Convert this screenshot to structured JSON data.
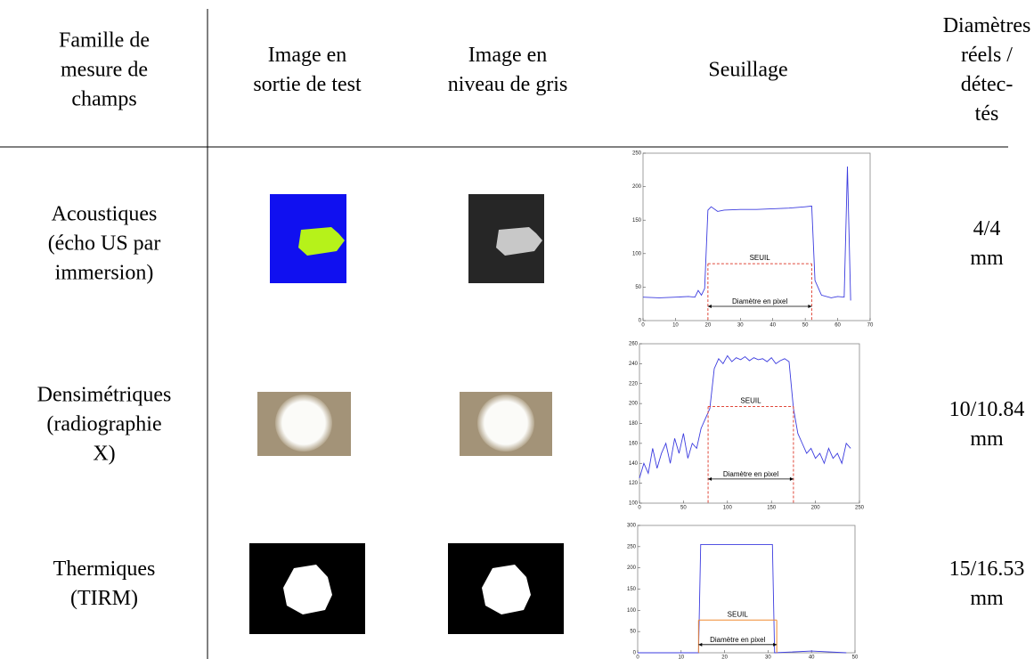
{
  "table": {
    "header": [
      [
        "Famille de",
        "mesure de",
        "champs"
      ],
      [
        "Image en",
        "sortie de test"
      ],
      [
        "Image en",
        "niveau de gris"
      ],
      [
        "Seuillage"
      ],
      [
        "Diamètres",
        "réels /",
        "détec-",
        "tés"
      ]
    ],
    "rows": [
      {
        "family": [
          "Acoustiques",
          "(écho US par",
          "immersion)"
        ],
        "result": [
          "4/4",
          "mm"
        ]
      },
      {
        "family": [
          "Densimétriques",
          "(radiographie",
          "X)"
        ],
        "result": [
          "10/10.84",
          "mm"
        ]
      },
      {
        "family": [
          "Thermiques",
          "(TIRM)"
        ],
        "result": [
          "15/16.53",
          "mm"
        ]
      }
    ]
  },
  "plots": [
    {
      "xlim": [
        0,
        70
      ],
      "ylim": [
        0,
        250
      ],
      "xticks": [
        0,
        10,
        20,
        30,
        40,
        50,
        60,
        70
      ],
      "yticks": [
        0,
        50,
        100,
        150,
        200,
        250
      ],
      "x": [
        0,
        5,
        10,
        14,
        16,
        17,
        18,
        19,
        20,
        21,
        23,
        25,
        30,
        35,
        40,
        45,
        50,
        52,
        53,
        55,
        58,
        60,
        62,
        63,
        64
      ],
      "y": [
        35,
        34,
        35,
        36,
        35,
        45,
        38,
        48,
        165,
        170,
        163,
        165,
        166,
        166,
        167,
        168,
        170,
        171,
        60,
        38,
        34,
        36,
        35,
        230,
        30
      ],
      "threshold": 85,
      "edges": [
        20,
        52
      ],
      "threshold_label": "SEUIL",
      "diameter_label": "Diamètre en pixel"
    },
    {
      "xlim": [
        0,
        250
      ],
      "ylim": [
        100,
        260
      ],
      "xticks": [
        0,
        50,
        100,
        150,
        200,
        250
      ],
      "yticks": [
        100,
        120,
        140,
        160,
        180,
        200,
        220,
        240,
        260
      ],
      "x": [
        0,
        5,
        10,
        15,
        20,
        25,
        30,
        35,
        40,
        45,
        50,
        55,
        60,
        65,
        70,
        75,
        80,
        85,
        90,
        95,
        100,
        105,
        110,
        115,
        120,
        125,
        130,
        135,
        140,
        145,
        150,
        155,
        160,
        165,
        170,
        175,
        180,
        185,
        190,
        195,
        200,
        205,
        210,
        215,
        220,
        225,
        230,
        235,
        240
      ],
      "y": [
        125,
        140,
        130,
        155,
        135,
        150,
        160,
        140,
        165,
        150,
        170,
        145,
        160,
        155,
        175,
        185,
        195,
        235,
        245,
        240,
        248,
        242,
        246,
        244,
        247,
        243,
        246,
        244,
        245,
        242,
        246,
        240,
        243,
        245,
        242,
        195,
        170,
        160,
        150,
        155,
        145,
        150,
        140,
        155,
        145,
        150,
        140,
        160,
        155
      ],
      "threshold": 197,
      "edges": [
        78,
        175
      ],
      "threshold_label": "SEUIL",
      "diameter_label": "Diamètre en pixel"
    },
    {
      "xlim": [
        0,
        50
      ],
      "ylim": [
        0,
        300
      ],
      "xticks": [
        0,
        10,
        20,
        30,
        40,
        50
      ],
      "yticks": [
        0,
        50,
        100,
        150,
        200,
        250,
        300
      ],
      "x": [
        0,
        14,
        14.5,
        31,
        31.5,
        40,
        48
      ],
      "y": [
        0,
        0,
        255,
        255,
        0,
        4,
        0
      ],
      "threshold": 77,
      "edges": [
        14,
        32
      ],
      "threshold_label": "SEUIL",
      "diameter_label": "Diamètre en pixel"
    }
  ]
}
